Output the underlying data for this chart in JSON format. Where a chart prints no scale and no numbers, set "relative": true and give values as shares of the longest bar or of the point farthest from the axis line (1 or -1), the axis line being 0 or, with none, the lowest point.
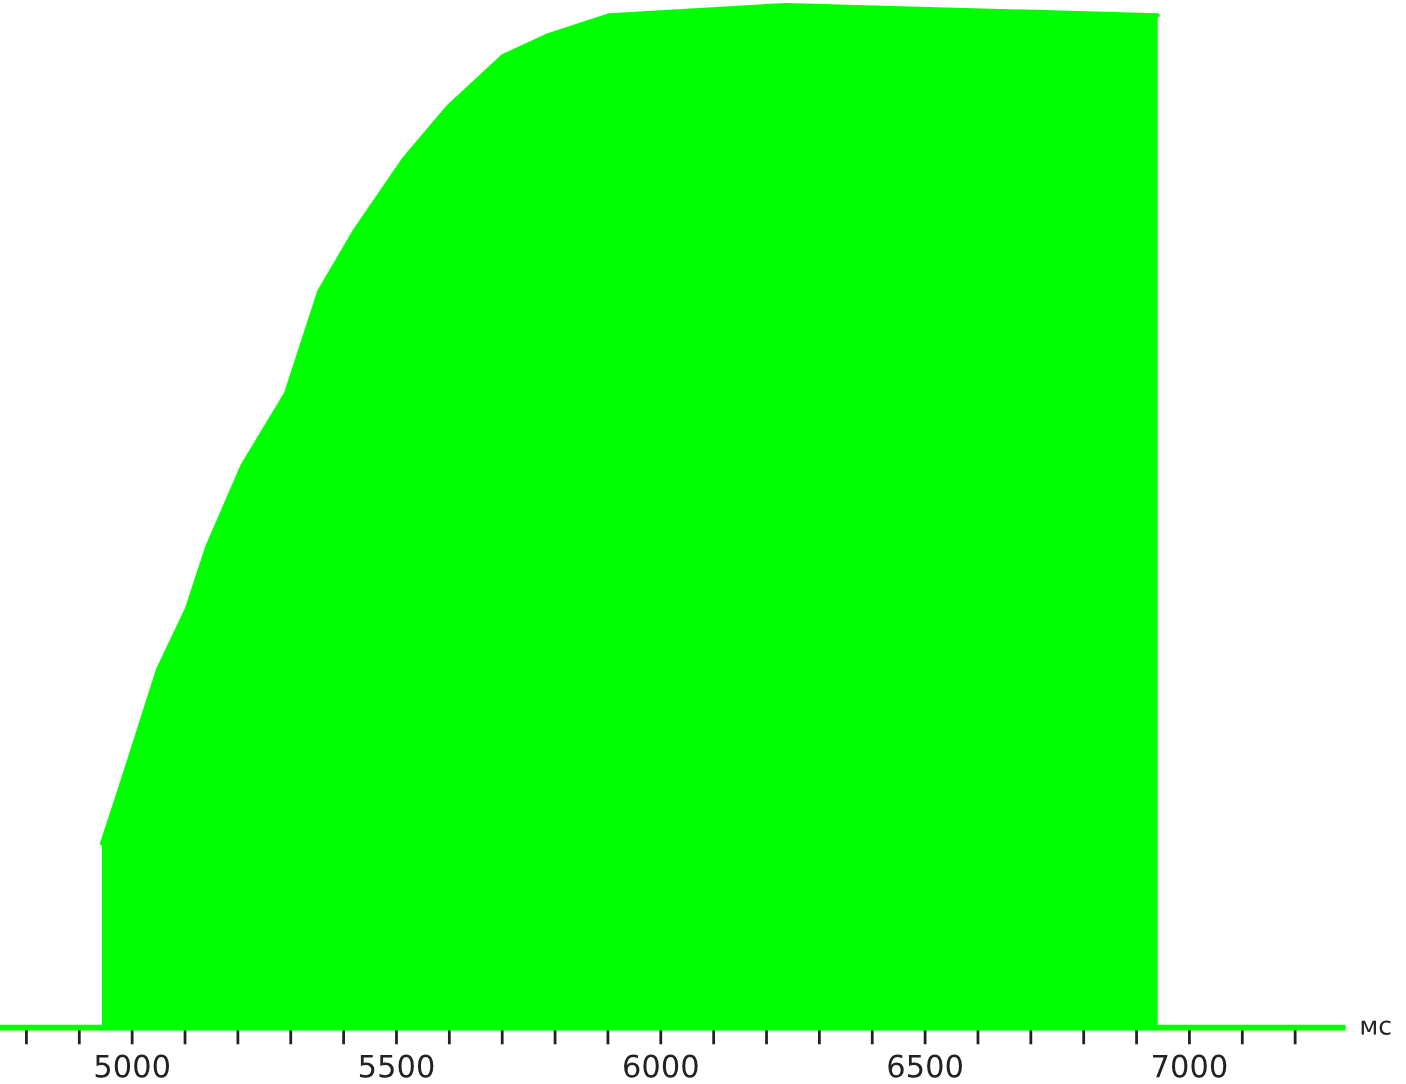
{
  "chart_data": {
    "type": "area",
    "relative": true,
    "xlabel": "мс",
    "x": [
      4943,
      4981,
      5049,
      5104,
      5142,
      5209,
      5291,
      5354,
      5422,
      5515,
      5597,
      5701,
      5784,
      5903,
      6235,
      6940
    ],
    "series": [
      {
        "color": "#00ff00",
        "values": [
          0.18,
          0.24,
          0.35,
          0.41,
          0.47,
          0.55,
          0.62,
          0.72,
          0.78,
          0.85,
          0.9,
          0.95,
          0.97,
          0.99,
          1,
          0.99
        ]
      }
    ],
    "xlim": [
      4750,
      7290
    ],
    "xticks": [
      {
        "value": 4800,
        "label": null
      },
      {
        "value": 4900,
        "label": null
      },
      {
        "value": 5000,
        "label": "5000"
      },
      {
        "value": 5100,
        "label": null
      },
      {
        "value": 5200,
        "label": null
      },
      {
        "value": 5300,
        "label": null
      },
      {
        "value": 5400,
        "label": null
      },
      {
        "value": 5500,
        "label": "5500"
      },
      {
        "value": 5600,
        "label": null
      },
      {
        "value": 5700,
        "label": null
      },
      {
        "value": 5800,
        "label": null
      },
      {
        "value": 5900,
        "label": null
      },
      {
        "value": 6000,
        "label": "6000"
      },
      {
        "value": 6100,
        "label": null
      },
      {
        "value": 6200,
        "label": null
      },
      {
        "value": 6300,
        "label": null
      },
      {
        "value": 6400,
        "label": null
      },
      {
        "value": 6500,
        "label": "6500"
      },
      {
        "value": 6600,
        "label": null
      },
      {
        "value": 6700,
        "label": null
      },
      {
        "value": 6800,
        "label": null
      },
      {
        "value": 6900,
        "label": null
      },
      {
        "value": 7000,
        "label": "7000"
      },
      {
        "value": 7100,
        "label": null
      },
      {
        "value": 7200,
        "label": null
      }
    ],
    "grid": false,
    "legend": false,
    "tick_labels": "x"
  }
}
